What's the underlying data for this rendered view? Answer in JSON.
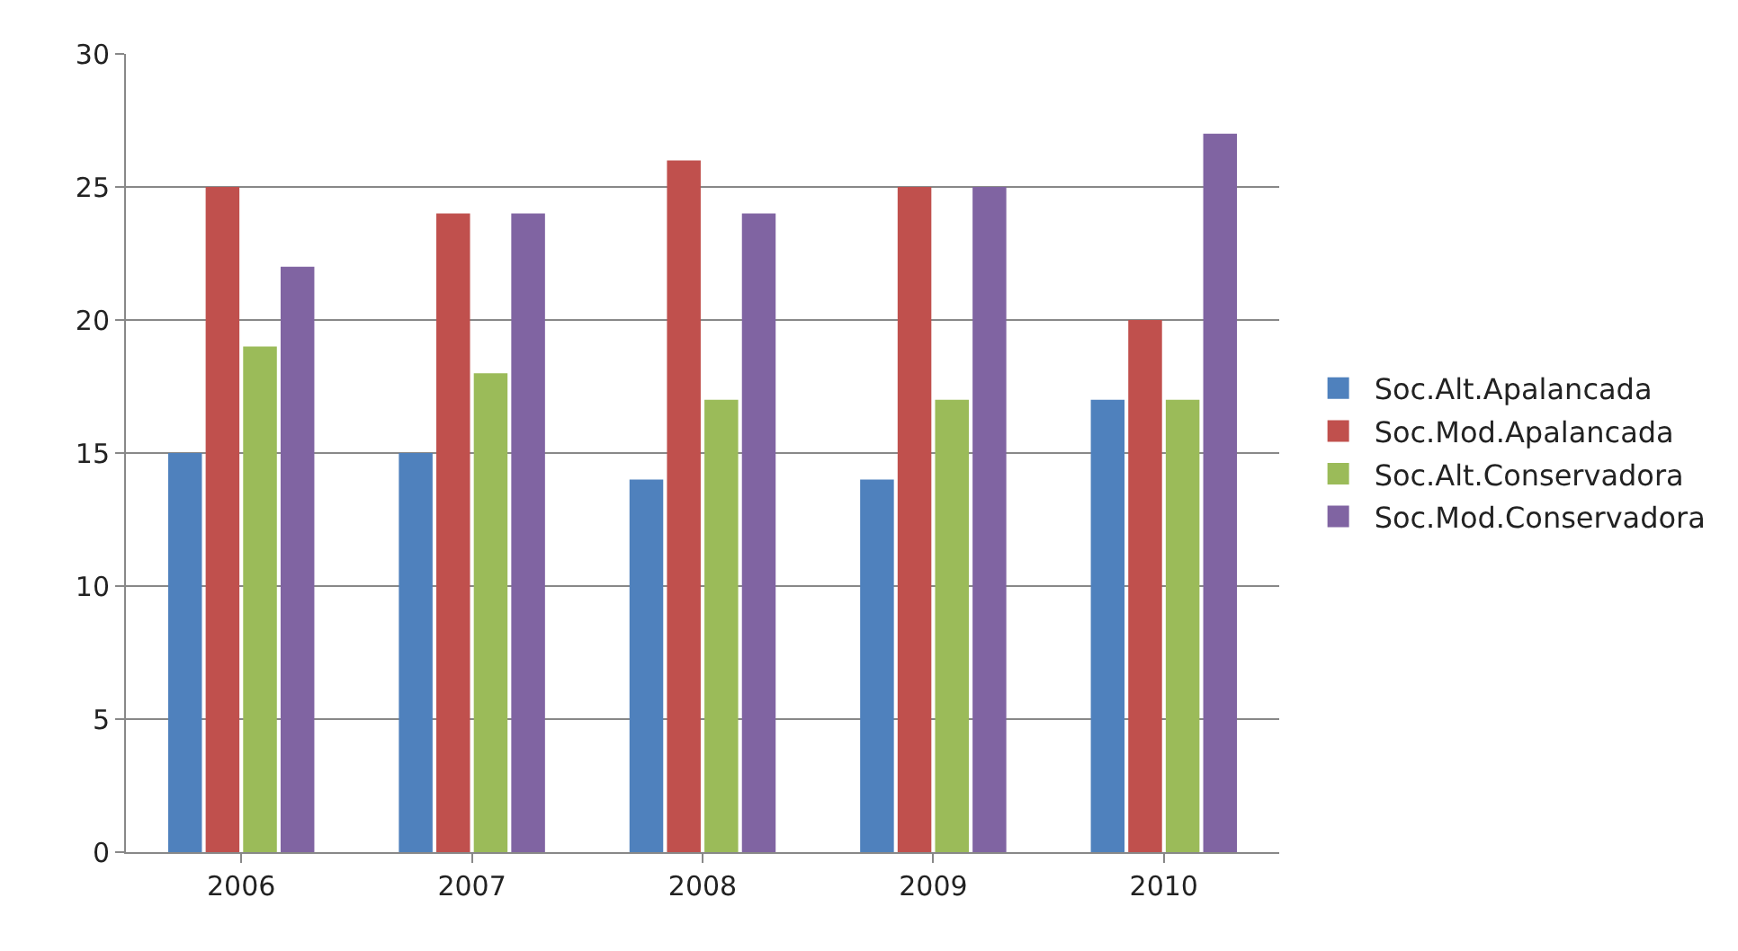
{
  "chart_data": {
    "type": "bar",
    "categories": [
      "2006",
      "2007",
      "2008",
      "2009",
      "2010"
    ],
    "series": [
      {
        "name": "Soc.Alt.Apalancada",
        "color": "#4f81bd",
        "values": [
          15,
          15,
          14,
          14,
          17
        ]
      },
      {
        "name": "Soc.Mod.Apalancada",
        "color": "#c0504d",
        "values": [
          25,
          24,
          26,
          25,
          20
        ]
      },
      {
        "name": "Soc.Alt.Conservadora",
        "color": "#9bbb59",
        "values": [
          19,
          18,
          17,
          17,
          17
        ]
      },
      {
        "name": "Soc.Mod.Conservadora",
        "color": "#8064a2",
        "values": [
          22,
          24,
          24,
          25,
          27
        ]
      }
    ],
    "ylim": [
      0,
      30
    ],
    "yticks": [
      0,
      5,
      10,
      15,
      20,
      25,
      30
    ],
    "grid": "y",
    "legend": "right"
  }
}
